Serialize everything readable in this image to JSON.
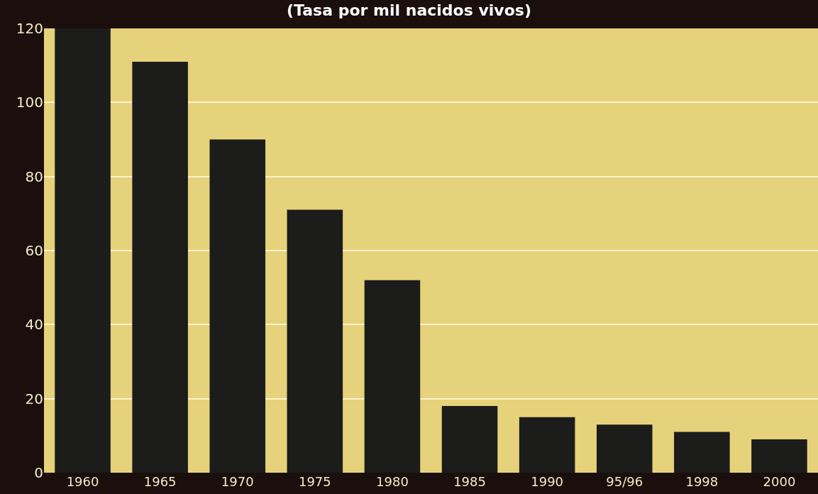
{
  "chart_data": {
    "type": "bar",
    "title": "(Tasa por mil nacidos vivos)",
    "categories": [
      "1960",
      "1965",
      "1970",
      "1975",
      "1980",
      "1985",
      "1990",
      "95/96",
      "1998",
      "2000"
    ],
    "values": [
      120,
      111,
      90,
      71,
      52,
      18,
      15,
      13,
      11,
      9
    ],
    "color": "#1c1c1a",
    "ylim": [
      0,
      120
    ],
    "yticks": [
      0,
      20,
      40,
      60,
      80,
      100,
      120
    ],
    "grid": "y"
  }
}
